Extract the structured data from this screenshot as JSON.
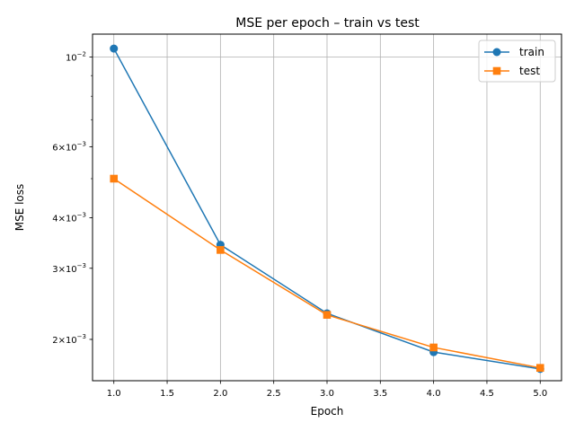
{
  "chart_data": {
    "type": "line",
    "title": "MSE per epoch – train vs test",
    "xlabel": "Epoch",
    "ylabel": "MSE loss",
    "x": [
      1,
      2,
      3,
      4,
      5
    ],
    "xlim": [
      0.8,
      5.2
    ],
    "x_ticks": [
      {
        "value": 1.0,
        "label": "1.0"
      },
      {
        "value": 1.5,
        "label": "1.5"
      },
      {
        "value": 2.0,
        "label": "2.0"
      },
      {
        "value": 2.5,
        "label": "2.5"
      },
      {
        "value": 3.0,
        "label": "3.0"
      },
      {
        "value": 3.5,
        "label": "3.5"
      },
      {
        "value": 4.0,
        "label": "4.0"
      },
      {
        "value": 4.5,
        "label": "4.5"
      },
      {
        "value": 5.0,
        "label": "5.0"
      }
    ],
    "y_scale": "log",
    "ylim": [
      0.00158,
      0.0114
    ],
    "y_ticks": [
      {
        "value": 0.002,
        "base": "2×10",
        "exp": "−3"
      },
      {
        "value": 0.003,
        "base": "3×10",
        "exp": "−3"
      },
      {
        "value": 0.004,
        "base": "4×10",
        "exp": "−3"
      },
      {
        "value": 0.006,
        "base": "6×10",
        "exp": "−3"
      },
      {
        "value": 0.01,
        "base": "10",
        "exp": "−2"
      }
    ],
    "y_minor_ticks": [
      0.002,
      0.003,
      0.004,
      0.005,
      0.006,
      0.007,
      0.008,
      0.009
    ],
    "grid": true,
    "legend_position": "top-right",
    "series": [
      {
        "name": "train",
        "color": "#1f77b4",
        "marker": "circle",
        "values": [
          0.0105,
          0.00343,
          0.00232,
          0.00186,
          0.00169
        ]
      },
      {
        "name": "test",
        "color": "#ff7f0e",
        "marker": "square",
        "values": [
          0.005,
          0.00333,
          0.0023,
          0.00191,
          0.0017
        ]
      }
    ]
  }
}
